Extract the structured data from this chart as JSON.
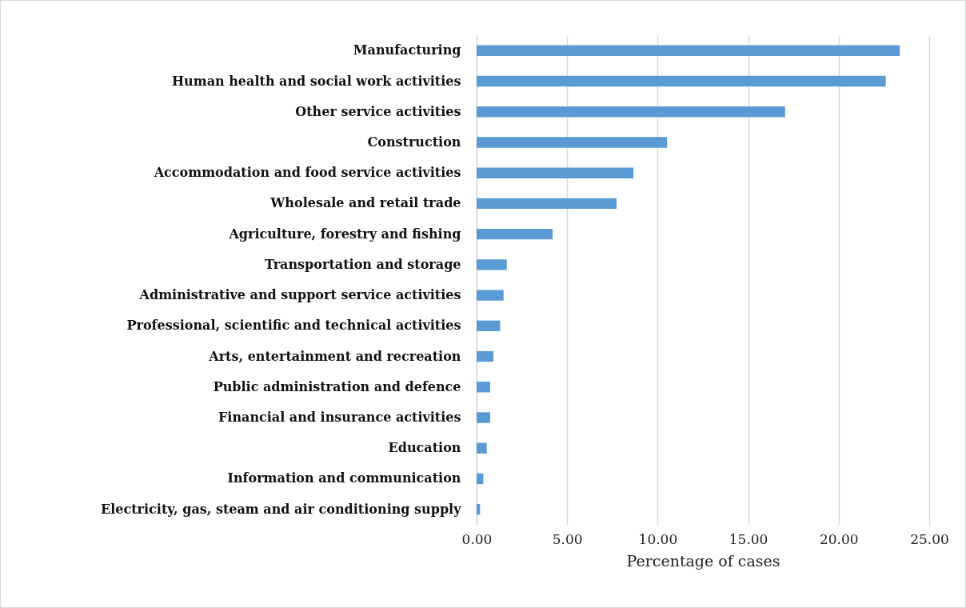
{
  "chart_data": {
    "type": "bar",
    "orientation": "horizontal",
    "categories": [
      "Manufacturing",
      "Human health and social work activities",
      "Other service activities",
      "Construction",
      "Accommodation and food service activities",
      "Wholesale and retail trade",
      "Agriculture, forestry and fishing",
      "Transportation and storage",
      "Administrative and support service activities",
      "Professional, scientific and technical activities",
      "Arts, entertainment and recreation",
      "Public administration and defence",
      "Financial and insurance activities",
      "Education",
      "Information and communication",
      "Electricity, gas, steam and air conditioning supply"
    ],
    "values": [
      23.37,
      22.6,
      17.04,
      10.52,
      8.66,
      7.73,
      4.2,
      1.67,
      1.49,
      1.3,
      0.93,
      0.75,
      0.75,
      0.56,
      0.37,
      0.19
    ],
    "color": "#5b9bd5",
    "xlabel": "Percentage of cases",
    "xlim": [
      0,
      25
    ],
    "xticks": [
      {
        "value": 0,
        "label": "0.00"
      },
      {
        "value": 5,
        "label": "5.00"
      },
      {
        "value": 10,
        "label": "10.00"
      },
      {
        "value": 15,
        "label": "15.00"
      },
      {
        "value": 20,
        "label": "20.00"
      },
      {
        "value": 25,
        "label": "25.00"
      }
    ],
    "grid": "x"
  }
}
